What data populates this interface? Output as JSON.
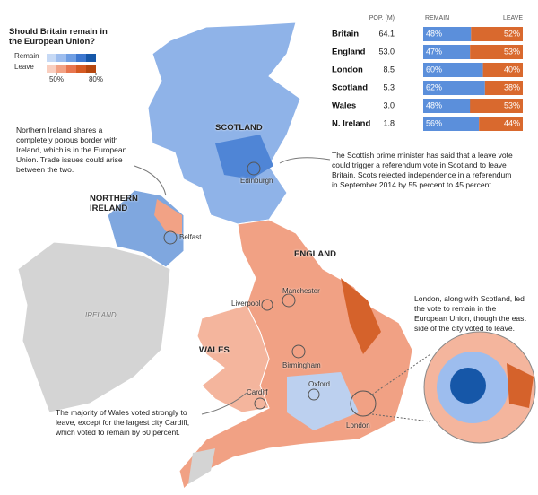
{
  "legend": {
    "title": "Should Britain remain in the European Union?",
    "remain_label": "Remain",
    "leave_label": "Leave",
    "ticks": [
      {
        "value": 50,
        "label": "50%"
      },
      {
        "value": 80,
        "label": "80%"
      }
    ]
  },
  "table": {
    "headers": [
      "POP. (M)",
      "REMAIN",
      "LEAVE"
    ],
    "rows": [
      {
        "name": "Britain",
        "pop": 64.1,
        "remain": 48,
        "remain_label": "48%",
        "leave": 52,
        "leave_label": "52%"
      },
      {
        "name": "England",
        "pop": 53.0,
        "remain": 47,
        "remain_label": "47%",
        "leave": 53,
        "leave_label": "53%"
      },
      {
        "name": "London",
        "pop": 8.5,
        "remain": 60,
        "remain_label": "60%",
        "leave": 40,
        "leave_label": "40%"
      },
      {
        "name": "Scotland",
        "pop": 5.3,
        "remain": 62,
        "remain_label": "62%",
        "leave": 38,
        "leave_label": "38%"
      },
      {
        "name": "Wales",
        "pop": 3.0,
        "remain": 48,
        "remain_label": "48%",
        "leave": 53,
        "leave_label": "53%"
      },
      {
        "name": "N. Ireland",
        "pop": 1.8,
        "remain": 56,
        "remain_label": "56%",
        "leave": 44,
        "leave_label": "44%"
      }
    ]
  },
  "map_labels": {
    "scotland": "SCOTLAND",
    "northern_ireland": "NORTHERN IRELAND",
    "england": "ENGLAND",
    "wales": "WALES",
    "ireland": "IRELAND",
    "edinburgh": "Edinburgh",
    "belfast": "Belfast",
    "manchester": "Manchester",
    "liverpool": "Liverpool",
    "birmingham": "Birmingham",
    "cardiff": "Cardiff",
    "oxford": "Oxford",
    "london": "London"
  },
  "annotations": {
    "northern_ireland": "Northern Ireland shares a completely porous border with Ireland, which is in the European Union. Trade issues could arise between the two.",
    "scotland": "The Scottish prime minister has said that a leave vote could trigger a referendum vote in Scotland to leave Britain. Scots rejected independence in a referendum in September 2014 by 55 percent to 45 percent.",
    "london": "London, along with Scotland, led the vote to remain in the European Union, though the east side of the city voted to leave.",
    "wales": "The majority of Wales voted strongly to leave, except for the largest city Cardiff, which voted to remain by 60 percent."
  }
}
